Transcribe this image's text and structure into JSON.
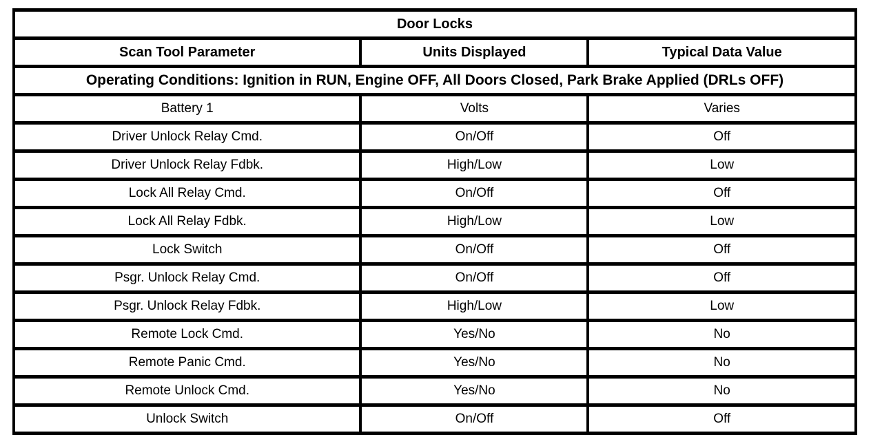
{
  "table": {
    "title": "Door Locks",
    "columns": {
      "parameter": "Scan Tool Parameter",
      "units": "Units Displayed",
      "value": "Typical Data Value"
    },
    "operating_conditions": "Operating Conditions: Ignition in RUN, Engine OFF, All Doors Closed, Park Brake Applied (DRLs OFF)",
    "rows": [
      {
        "parameter": "Battery 1",
        "units": "Volts",
        "value": "Varies"
      },
      {
        "parameter": "Driver Unlock Relay Cmd.",
        "units": "On/Off",
        "value": "Off"
      },
      {
        "parameter": "Driver Unlock Relay Fdbk.",
        "units": "High/Low",
        "value": "Low"
      },
      {
        "parameter": "Lock All Relay Cmd.",
        "units": "On/Off",
        "value": "Off"
      },
      {
        "parameter": "Lock All Relay Fdbk.",
        "units": "High/Low",
        "value": "Low"
      },
      {
        "parameter": "Lock Switch",
        "units": "On/Off",
        "value": "Off"
      },
      {
        "parameter": "Psgr. Unlock Relay Cmd.",
        "units": "On/Off",
        "value": "Off"
      },
      {
        "parameter": "Psgr. Unlock Relay Fdbk.",
        "units": "High/Low",
        "value": "Low"
      },
      {
        "parameter": "Remote Lock Cmd.",
        "units": "Yes/No",
        "value": "No"
      },
      {
        "parameter": "Remote Panic Cmd.",
        "units": "Yes/No",
        "value": "No"
      },
      {
        "parameter": "Remote Unlock Cmd.",
        "units": "Yes/No",
        "value": "No"
      },
      {
        "parameter": "Unlock Switch",
        "units": "On/Off",
        "value": "Off"
      }
    ],
    "colors": {
      "border": "#000000",
      "background": "#ffffff",
      "text": "#000000"
    }
  }
}
